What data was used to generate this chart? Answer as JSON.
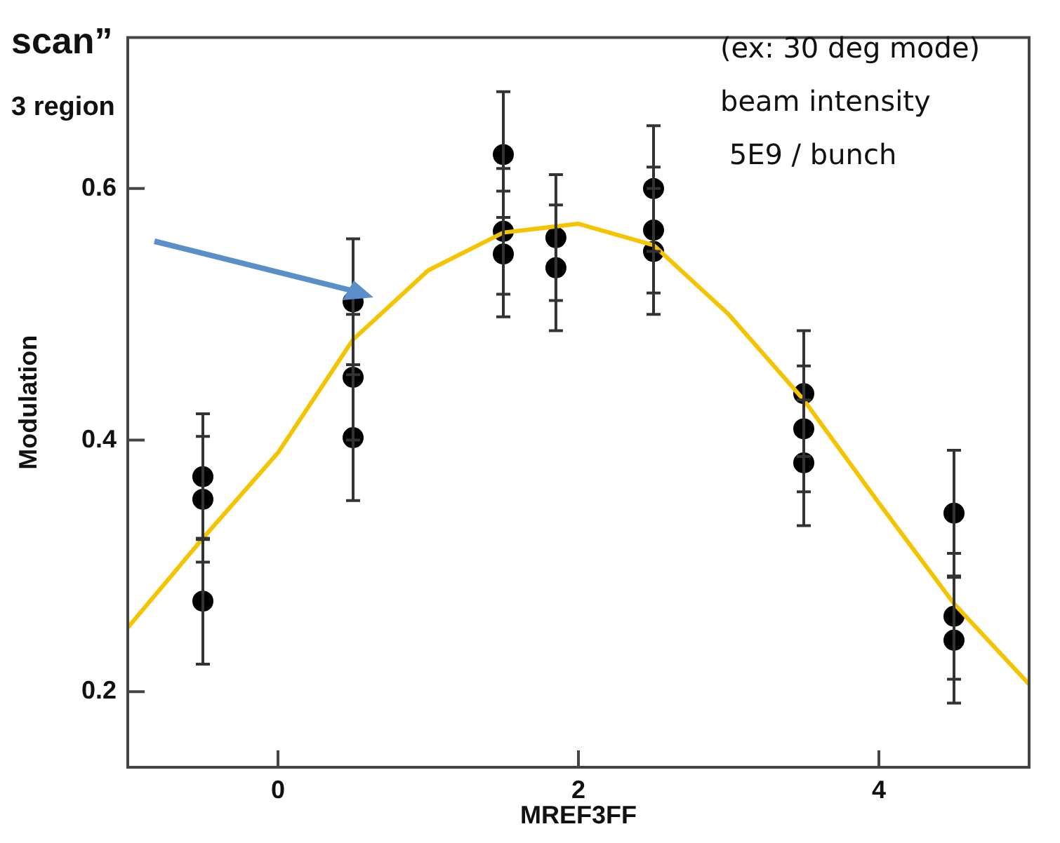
{
  "chart_data": {
    "type": "scatter",
    "xlabel": "MREF3FF",
    "ylabel": "Modulation",
    "xlim": [
      -1,
      5
    ],
    "xticks": [
      0,
      2,
      4
    ],
    "ylim": [
      0.14,
      0.72
    ],
    "yticks": [
      0.2,
      0.4,
      0.6
    ],
    "legend": false,
    "annotations": [
      "scan”",
      "3 region",
      "(ex: 30 deg mode)",
      "beam intensity",
      " 5E9 / bunch"
    ],
    "series": [
      {
        "type": "line",
        "color": "#f5c400",
        "marker": "none",
        "line_style": "solid",
        "x": [
          -1,
          -0.5,
          0,
          0.5,
          1,
          1.5,
          2,
          2.5,
          3,
          3.5,
          4,
          4.5,
          5
        ],
        "values": [
          0.251,
          0.322,
          0.39,
          0.48,
          0.535,
          0.565,
          0.572,
          0.555,
          0.5,
          0.432,
          0.35,
          0.27,
          0.206
        ]
      },
      {
        "type": "scatter",
        "color": "#000000",
        "marker": "circle",
        "x": [
          -0.5,
          -0.5,
          -0.5,
          0.5,
          0.5,
          0.5,
          1.5,
          1.5,
          1.5,
          1.85,
          1.85,
          2.5,
          2.5,
          2.5,
          3.5,
          3.5,
          3.5,
          4.5,
          4.5,
          4.5
        ],
        "values": [
          0.371,
          0.353,
          0.272,
          0.51,
          0.45,
          0.402,
          0.627,
          0.566,
          0.548,
          0.561,
          0.537,
          0.6,
          0.567,
          0.55,
          0.437,
          0.409,
          0.382,
          0.342,
          0.26,
          0.241
        ],
        "errors": [
          0.05,
          0.05,
          0.05,
          0.05,
          0.05,
          0.05,
          0.05,
          0.05,
          0.05,
          0.05,
          0.05,
          0.05,
          0.05,
          0.05,
          0.05,
          0.05,
          0.05,
          0.05,
          0.05,
          0.05
        ]
      }
    ]
  }
}
